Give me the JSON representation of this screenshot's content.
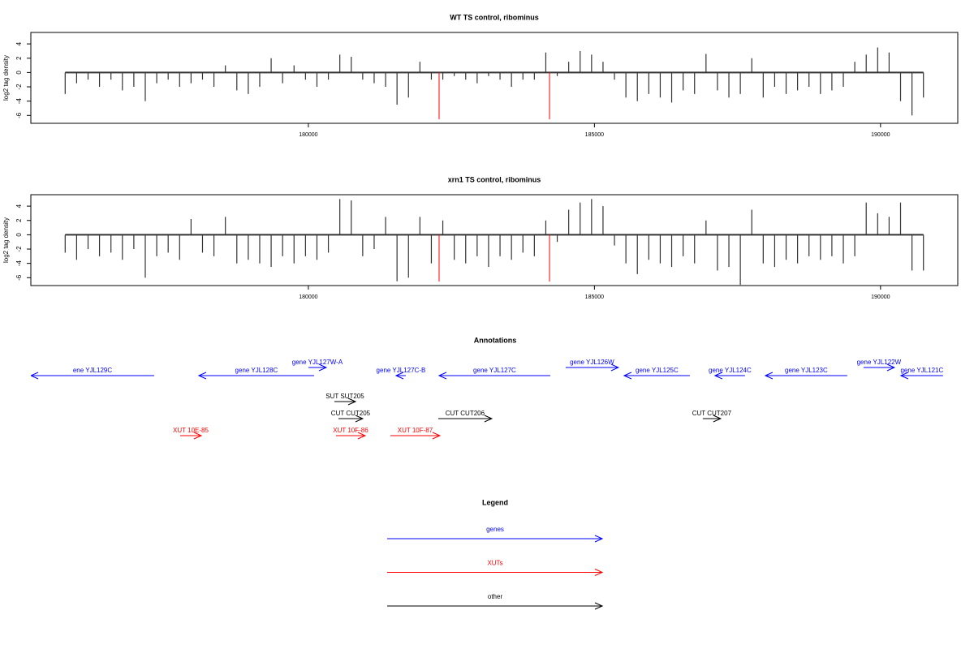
{
  "chart_data": [
    {
      "type": "bar",
      "title": "WT TS control, ribominus",
      "y_label": "log2 tag density",
      "x": [
        175750,
        175950,
        176150,
        176350,
        176550,
        176750,
        176950,
        177150,
        177350,
        177550,
        177750,
        177950,
        178150,
        178350,
        178550,
        178750,
        178950,
        179150,
        179350,
        179550,
        179750,
        179950,
        180150,
        180350,
        180550,
        180750,
        180950,
        181150,
        181350,
        181550,
        181750,
        181950,
        182150,
        182350,
        182550,
        182750,
        182950,
        183150,
        183350,
        183550,
        183750,
        183950,
        184150,
        184350,
        184550,
        184750,
        184950,
        185150,
        185350,
        185550,
        185750,
        185950,
        186150,
        186350,
        186550,
        186750,
        186950,
        187150,
        187350,
        187550,
        187750,
        187950,
        188150,
        188350,
        188550,
        188750,
        188950,
        189150,
        189350,
        189550,
        189750,
        189950,
        190150,
        190350,
        190550,
        190750
      ],
      "values": [
        -3,
        -1.5,
        -1,
        -2,
        -1,
        -2.5,
        -2,
        -4,
        -1.5,
        -1,
        -2,
        -1.5,
        -1,
        -2,
        1,
        -2.5,
        -3,
        -2,
        2,
        -1.5,
        1,
        -1,
        -2,
        -1,
        2.5,
        2.2,
        -1,
        -1.5,
        -2,
        -4.5,
        -3.5,
        1.5,
        -1,
        -1,
        -0.5,
        -1,
        -1.5,
        -0.5,
        -1,
        -2,
        -1,
        -1,
        2.8,
        -0.5,
        1.5,
        3,
        2.5,
        1.5,
        -1,
        -3.5,
        -4,
        -3,
        -3.5,
        -4.2,
        -2.5,
        -3,
        2.6,
        -2.5,
        -3.5,
        -3,
        2,
        -3.5,
        -2,
        -3,
        -2.5,
        -2,
        -3,
        -2.5,
        -2,
        1.5,
        2.5,
        3.5,
        2.8,
        -4,
        -6,
        -3.5
      ],
      "color": "#333333",
      "vlines": [
        182285,
        184215
      ],
      "vline_color": "#ff0000",
      "xlim": [
        175150,
        191350
      ],
      "ylim": [
        -7.1,
        5.6
      ],
      "xticks": [
        180000,
        185000,
        190000
      ],
      "yticks": [
        -6,
        -4,
        -2,
        0,
        2,
        4
      ]
    },
    {
      "type": "bar",
      "title": "xrn1 TS control, ribominus",
      "y_label": "log2 tag density",
      "x": [
        175750,
        175950,
        176150,
        176350,
        176550,
        176750,
        176950,
        177150,
        177350,
        177550,
        177750,
        177950,
        178150,
        178350,
        178550,
        178750,
        178950,
        179150,
        179350,
        179550,
        179750,
        179950,
        180150,
        180350,
        180550,
        180750,
        180950,
        181150,
        181350,
        181550,
        181750,
        181950,
        182150,
        182350,
        182550,
        182750,
        182950,
        183150,
        183350,
        183550,
        183750,
        183950,
        184150,
        184350,
        184550,
        184750,
        184950,
        185150,
        185350,
        185550,
        185750,
        185950,
        186150,
        186350,
        186550,
        186750,
        186950,
        187150,
        187350,
        187550,
        187750,
        187950,
        188150,
        188350,
        188550,
        188750,
        188950,
        189150,
        189350,
        189550,
        189750,
        189950,
        190150,
        190350,
        190550,
        190750
      ],
      "values": [
        -2.5,
        -3.5,
        -2,
        -3,
        -2.5,
        -3.5,
        -2,
        -6,
        -3,
        -2.5,
        -3.5,
        2.2,
        -2.5,
        -3,
        2.5,
        -4,
        -3.5,
        -4,
        -4.5,
        -3,
        -4,
        -3,
        -3.5,
        -2.5,
        5,
        4.8,
        -3,
        -2,
        2.5,
        -6.5,
        -6,
        2.5,
        -4,
        2,
        -3.5,
        -4,
        -3,
        -4.5,
        -3,
        -3.5,
        -2.5,
        -3,
        2,
        -1,
        3.5,
        4.5,
        5,
        4,
        -1.5,
        -4,
        -5.5,
        -3.5,
        -4,
        -4.5,
        -3,
        -4,
        2,
        -5,
        -4.5,
        -7,
        3.5,
        -4,
        -4.5,
        -3.5,
        -4,
        -3,
        -3.5,
        -3,
        -4,
        -3,
        4.5,
        3,
        2.5,
        4.5,
        -5,
        -5
      ],
      "color": "#333333",
      "vlines": [
        182285,
        184215
      ],
      "vline_color": "#ff0000",
      "xlim": [
        175150,
        191350
      ],
      "ylim": [
        -7.1,
        5.6
      ],
      "xticks": [
        180000,
        185000,
        190000
      ],
      "yticks": [
        -6,
        -4,
        -2,
        0,
        2,
        4
      ]
    }
  ],
  "annotations": {
    "title": "Annotations",
    "xlim": [
      175150,
      191350
    ],
    "genes": [
      {
        "label": "ene YJL129C",
        "start": 175150,
        "end": 177306,
        "strand": "-"
      },
      {
        "label": "gene YJL128C",
        "start": 178086,
        "end": 180100,
        "strand": "-"
      },
      {
        "label": "gene YJL127W-A",
        "start": 180001,
        "end": 180313,
        "strand": "+"
      },
      {
        "label": "gene YJL127C-B",
        "start": 181533,
        "end": 181703,
        "strand": "-"
      },
      {
        "label": "gene YJL127C",
        "start": 182285,
        "end": 184228,
        "strand": "-"
      },
      {
        "label": "gene YJL126W",
        "start": 184497,
        "end": 185419,
        "strand": "+"
      },
      {
        "label": "gene YJL125C",
        "start": 185519,
        "end": 186667,
        "strand": "-"
      },
      {
        "label": "gene YJL124C",
        "start": 187107,
        "end": 187632,
        "strand": "-"
      },
      {
        "label": "gene YJL123C",
        "start": 187987,
        "end": 189419,
        "strand": "-"
      },
      {
        "label": "gene YJL122W",
        "start": 189703,
        "end": 190242,
        "strand": "+"
      },
      {
        "label": "gene YJL121C",
        "start": 190355,
        "end": 191093,
        "strand": "-"
      }
    ],
    "suts": [
      {
        "label": "SUT SUT205",
        "start": 180455,
        "end": 180824,
        "strand": "+"
      }
    ],
    "cuts": [
      {
        "label": "CUT CUT205",
        "start": 180526,
        "end": 180951,
        "strand": "+"
      },
      {
        "label": "CUT CUT206",
        "start": 182270,
        "end": 183206,
        "strand": "+"
      },
      {
        "label": "CUT CUT207",
        "start": 186894,
        "end": 187206,
        "strand": "+"
      }
    ],
    "xuts": [
      {
        "label": "XUT 10E-85",
        "start": 177760,
        "end": 178129,
        "strand": "+"
      },
      {
        "label": "XUT 10F-86",
        "start": 180483,
        "end": 180994,
        "strand": "+"
      },
      {
        "label": "XUT 10F-87",
        "start": 181434,
        "end": 182299,
        "strand": "+"
      }
    ]
  },
  "legend": {
    "title": "Legend",
    "items": [
      {
        "label": "genes",
        "color": "#0000ff"
      },
      {
        "label": "XUTs",
        "color": "#ff0000"
      },
      {
        "label": "other",
        "color": "#000000"
      }
    ]
  }
}
